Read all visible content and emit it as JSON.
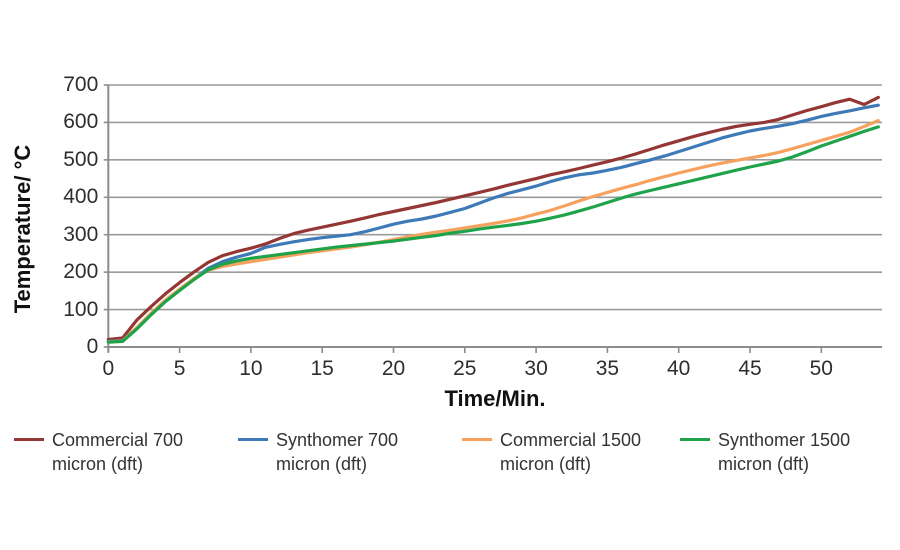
{
  "chart_data": {
    "type": "line",
    "title": "",
    "xlabel": "Time/Min.",
    "ylabel": "Temperature/ °C",
    "x_start": 0,
    "x_interval_minutes": 1,
    "xlim": [
      0,
      54
    ],
    "ylim": [
      0,
      700
    ],
    "x_ticks": [
      0,
      5,
      10,
      15,
      20,
      25,
      30,
      35,
      40,
      45,
      50
    ],
    "y_ticks": [
      0,
      100,
      200,
      300,
      400,
      500,
      600,
      700
    ],
    "grid": "horizontal",
    "legend_position": "bottom",
    "grid_color": "#9b9b9b",
    "axis_color": "#8c8c8c",
    "tick_label_color": "#2e2e2e",
    "series": [
      {
        "name": "Commercial 700 micron (dft)",
        "color": "#943634",
        "values": [
          20,
          24,
          72,
          108,
          142,
          172,
          200,
          226,
          244,
          255,
          264,
          275,
          290,
          303,
          312,
          320,
          328,
          336,
          345,
          354,
          362,
          370,
          378,
          386,
          395,
          404,
          413,
          422,
          432,
          441,
          450,
          460,
          468,
          477,
          486,
          495,
          505,
          516,
          528,
          540,
          551,
          562,
          572,
          581,
          589,
          595,
          600,
          608,
          620,
          632,
          642,
          653,
          662,
          648,
          667
        ]
      },
      {
        "name": "Synthomer 700 micron (dft)",
        "color": "#3e79b8",
        "values": [
          15,
          17,
          50,
          88,
          122,
          152,
          182,
          210,
          228,
          240,
          250,
          266,
          274,
          281,
          287,
          292,
          296,
          300,
          308,
          318,
          328,
          336,
          342,
          350,
          360,
          370,
          384,
          398,
          410,
          420,
          430,
          442,
          452,
          460,
          465,
          472,
          480,
          490,
          500,
          510,
          522,
          534,
          546,
          558,
          568,
          577,
          584,
          590,
          597,
          606,
          616,
          624,
          631,
          639,
          646
        ]
      },
      {
        "name": "Commercial 1500 micron (dft)",
        "color": "#f6a15e",
        "values": [
          14,
          16,
          52,
          90,
          125,
          155,
          183,
          205,
          215,
          222,
          228,
          234,
          240,
          246,
          252,
          257,
          262,
          267,
          273,
          280,
          287,
          294,
          301,
          307,
          312,
          318,
          324,
          330,
          337,
          345,
          355,
          365,
          377,
          390,
          402,
          413,
          424,
          434,
          445,
          455,
          465,
          474,
          483,
          491,
          498,
          505,
          512,
          520,
          530,
          541,
          552,
          563,
          574,
          589,
          605
        ]
      },
      {
        "name": "Synthomer 1500 micron (dft)",
        "color": "#1ea34a",
        "values": [
          13,
          15,
          48,
          86,
          121,
          151,
          180,
          206,
          221,
          230,
          237,
          242,
          247,
          252,
          257,
          262,
          267,
          271,
          275,
          279,
          283,
          288,
          293,
          298,
          304,
          309,
          315,
          320,
          325,
          330,
          336,
          344,
          353,
          363,
          374,
          386,
          398,
          409,
          418,
          427,
          436,
          445,
          454,
          463,
          472,
          481,
          489,
          497,
          508,
          522,
          537,
          550,
          563,
          576,
          588
        ]
      }
    ]
  }
}
